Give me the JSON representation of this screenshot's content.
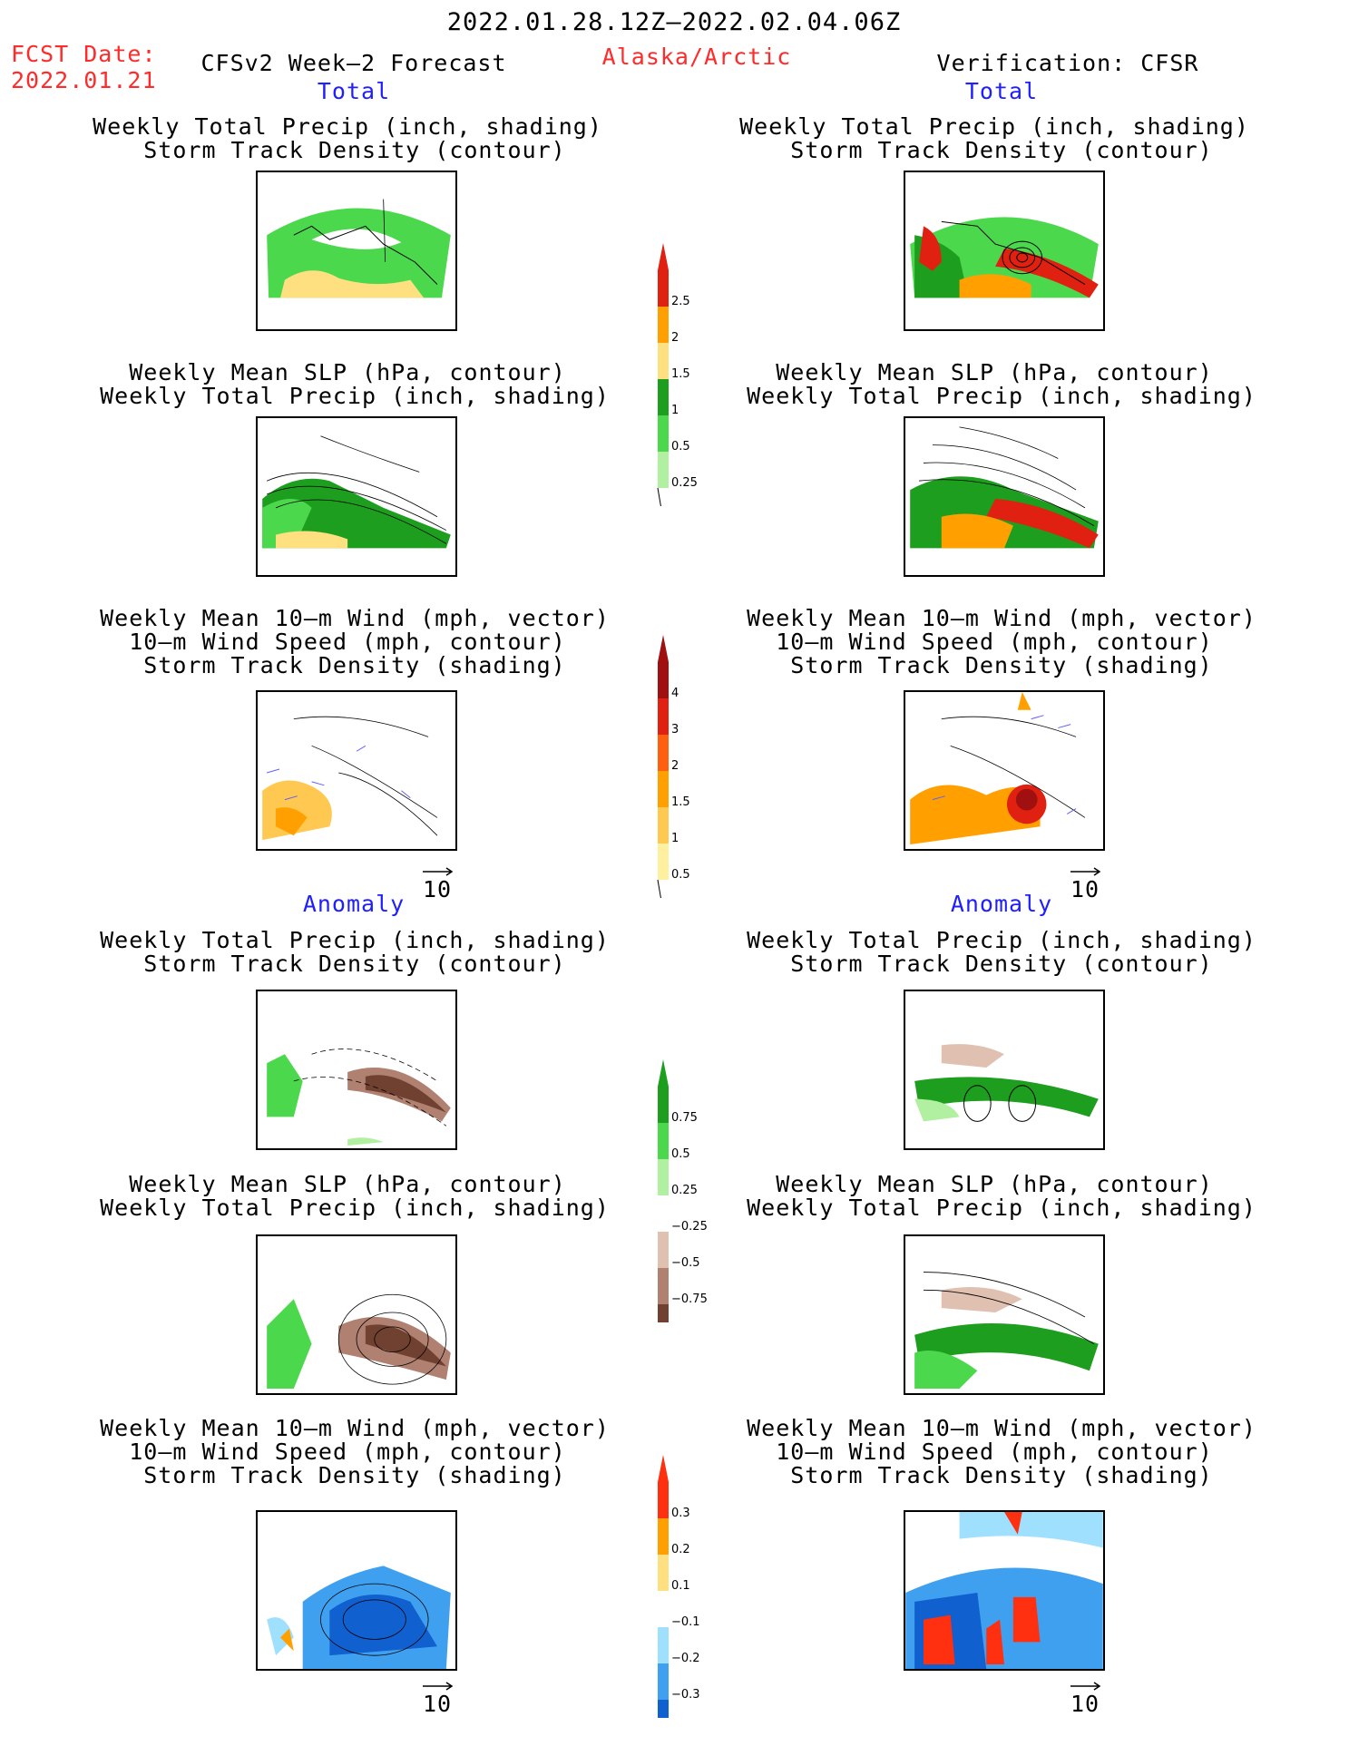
{
  "header": {
    "period": "2022.01.28.12Z–2022.02.04.06Z",
    "fcst_label": "FCST Date:",
    "fcst_date": "2022.01.21",
    "model": "CFSv2 Week–2 Forecast",
    "region": "Alaska/Arctic",
    "verification": "Verification: CFSR"
  },
  "sections": {
    "total": "Total",
    "anomaly": "Anomaly"
  },
  "panel_titles": {
    "precip_track": [
      "Weekly Total Precip (inch, shading)",
      "Storm Track Density (contour)"
    ],
    "slp_precip": [
      "Weekly Mean SLP (hPa, contour)",
      "Weekly Total Precip (inch, shading)"
    ],
    "wind_track": [
      "Weekly Mean 10–m Wind (mph, vector)",
      "10–m Wind Speed (mph, contour)",
      "Storm Track Density (shading)"
    ]
  },
  "vector_ref": "10",
  "colorbars": {
    "total_precip": {
      "labels": [
        "2.5",
        "2",
        "1.5",
        "1",
        "0.5",
        "0.25"
      ],
      "colors": [
        "#e02010",
        "#ffa000",
        "#ffe080",
        "#1e9e1e",
        "#4cd84c",
        "#b0f0a0"
      ]
    },
    "total_track": {
      "labels": [
        "4",
        "3",
        "2",
        "1.5",
        "1",
        "0.5"
      ],
      "colors": [
        "#a01010",
        "#e02010",
        "#ff6010",
        "#ffa000",
        "#ffc850",
        "#fff0a0"
      ]
    },
    "anom_precip": {
      "labels": [
        "0.75",
        "0.5",
        "0.25",
        "−0.25",
        "−0.5",
        "−0.75"
      ],
      "colors": [
        "#1e9e1e",
        "#4cd84c",
        "#b0f0a0",
        "#ffffff",
        "#e0c0b0",
        "#b08070",
        "#704030"
      ]
    },
    "anom_track": {
      "labels": [
        "0.3",
        "0.2",
        "0.1",
        "−0.1",
        "−0.2",
        "−0.3"
      ],
      "colors": [
        "#ff3010",
        "#ffa000",
        "#ffe080",
        "#ffffff",
        "#a0e0ff",
        "#40a0f0",
        "#1060d0"
      ]
    }
  }
}
